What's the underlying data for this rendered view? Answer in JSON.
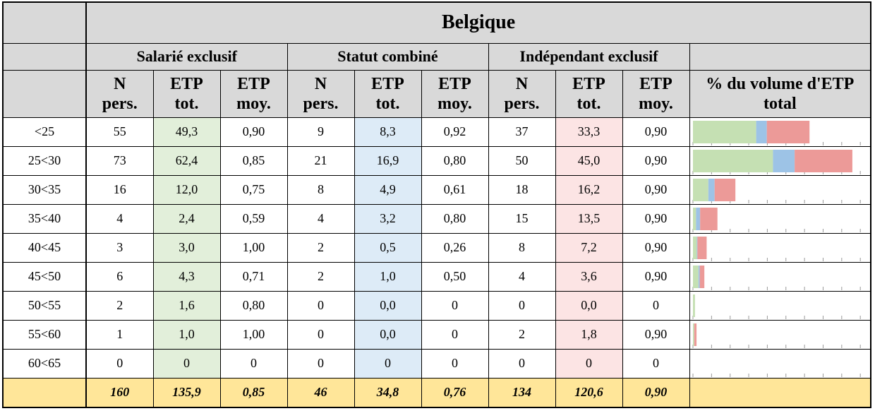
{
  "title": "Belgique",
  "groups": [
    "Salarié exclusif",
    "Statut combiné",
    "Indépendant exclusif"
  ],
  "columns": [
    "N\npers.",
    "ETP\ntot.",
    "ETP\nmoy.",
    "N\npers.",
    "ETP\ntot.",
    "ETP\nmoy.",
    "N\npers.",
    "ETP\ntot.",
    "ETP\nmoy."
  ],
  "volume_header": "% du volume d'ETP\ntotal",
  "rows": [
    {
      "label": "<25",
      "cells": [
        "55",
        "49,3",
        "0,90",
        "9",
        "8,3",
        "0,92",
        "37",
        "33,3",
        "0,90"
      ]
    },
    {
      "label": "25<30",
      "cells": [
        "73",
        "62,4",
        "0,85",
        "21",
        "16,9",
        "0,80",
        "50",
        "45,0",
        "0,90"
      ]
    },
    {
      "label": "30<35",
      "cells": [
        "16",
        "12,0",
        "0,75",
        "8",
        "4,9",
        "0,61",
        "18",
        "16,2",
        "0,90"
      ]
    },
    {
      "label": "35<40",
      "cells": [
        "4",
        "2,4",
        "0,59",
        "4",
        "3,2",
        "0,80",
        "15",
        "13,5",
        "0,90"
      ]
    },
    {
      "label": "40<45",
      "cells": [
        "3",
        "3,0",
        "1,00",
        "2",
        "0,5",
        "0,26",
        "8",
        "7,2",
        "0,90"
      ]
    },
    {
      "label": "45<50",
      "cells": [
        "6",
        "4,3",
        "0,71",
        "2",
        "1,0",
        "0,50",
        "4",
        "3,6",
        "0,90"
      ]
    },
    {
      "label": "50<55",
      "cells": [
        "2",
        "1,6",
        "0,80",
        "0",
        "0,0",
        "0",
        "0",
        "0,0",
        "0"
      ]
    },
    {
      "label": "55<60",
      "cells": [
        "1",
        "1,0",
        "1,00",
        "0",
        "0,0",
        "0",
        "2",
        "1,8",
        "0,90"
      ]
    },
    {
      "label": "60<65",
      "cells": [
        "0",
        "0",
        "0",
        "0",
        "0",
        "0",
        "0",
        "0",
        "0"
      ]
    }
  ],
  "total": {
    "cells": [
      "160",
      "135,9",
      "0,85",
      "46",
      "34,8",
      "0,76",
      "134",
      "120,6",
      "0,90"
    ]
  },
  "volume_chart": {
    "type": "bar",
    "stacked": true,
    "colors": [
      "#c5e0b3",
      "#9dc3e6",
      "#ec9a98"
    ],
    "xlim": [
      0,
      137
    ],
    "xticks": [
      0,
      14.5,
      29,
      43.5,
      58,
      72.5,
      87,
      101.5,
      116,
      130.5
    ]
  }
}
